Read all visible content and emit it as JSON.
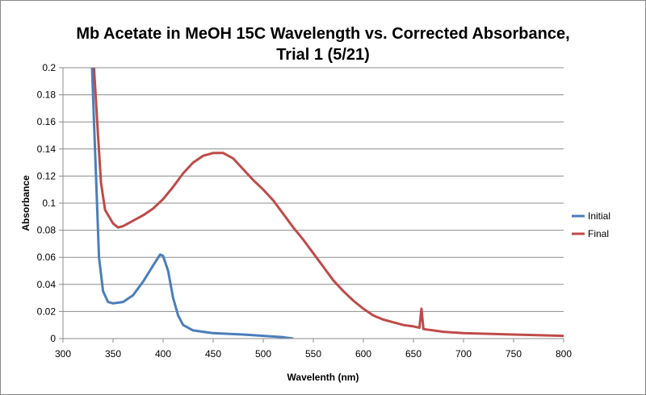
{
  "chart_data": {
    "type": "line",
    "title_lines": [
      "Mb Acetate in MeOH 15C Wavelength vs. Corrected Absorbance,",
      "Trial 1 (5/21)"
    ],
    "xlabel": "Wavelenth (nm)",
    "ylabel": "Absorbance",
    "xlim": [
      300,
      800
    ],
    "ylim": [
      0,
      0.2
    ],
    "xticks": [
      300,
      350,
      400,
      450,
      500,
      550,
      600,
      650,
      700,
      750,
      800
    ],
    "yticks": [
      0,
      0.02,
      0.04,
      0.06,
      0.08,
      0.1,
      0.12,
      0.14,
      0.16,
      0.18,
      0.2
    ],
    "grid": "horizontal",
    "legend_position": "right",
    "series": [
      {
        "name": "Initial",
        "color": "#4a7ebb",
        "x": [
          329,
          331,
          333,
          336,
          340,
          345,
          350,
          360,
          370,
          380,
          390,
          397,
          400,
          405,
          410,
          415,
          420,
          430,
          450,
          480,
          500,
          520,
          530
        ],
        "y": [
          0.2,
          0.16,
          0.12,
          0.06,
          0.035,
          0.027,
          0.026,
          0.027,
          0.032,
          0.042,
          0.054,
          0.062,
          0.061,
          0.05,
          0.03,
          0.017,
          0.01,
          0.006,
          0.004,
          0.003,
          0.002,
          0.001,
          0.0
        ]
      },
      {
        "name": "Final",
        "color": "#be4b48",
        "x": [
          331,
          335,
          338,
          342,
          350,
          355,
          360,
          370,
          380,
          390,
          400,
          410,
          420,
          430,
          440,
          450,
          460,
          470,
          480,
          490,
          500,
          510,
          520,
          530,
          540,
          550,
          560,
          570,
          580,
          590,
          600,
          610,
          620,
          630,
          640,
          650,
          656,
          658,
          660,
          680,
          700,
          750,
          800
        ],
        "y": [
          0.2,
          0.15,
          0.115,
          0.095,
          0.085,
          0.082,
          0.083,
          0.087,
          0.091,
          0.096,
          0.103,
          0.112,
          0.122,
          0.13,
          0.135,
          0.137,
          0.137,
          0.133,
          0.125,
          0.117,
          0.11,
          0.102,
          0.092,
          0.082,
          0.073,
          0.063,
          0.053,
          0.043,
          0.035,
          0.028,
          0.022,
          0.017,
          0.014,
          0.012,
          0.01,
          0.009,
          0.008,
          0.022,
          0.007,
          0.005,
          0.004,
          0.003,
          0.002
        ]
      }
    ]
  }
}
